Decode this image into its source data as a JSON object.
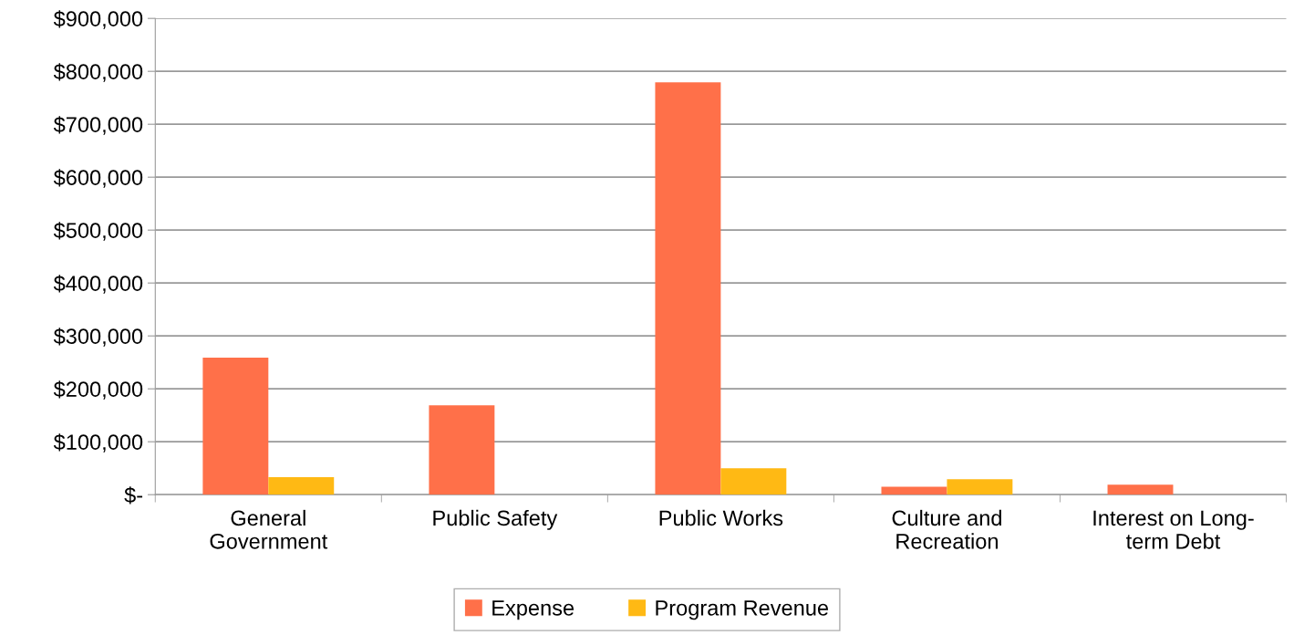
{
  "chart_data": {
    "type": "bar",
    "categories": [
      "General\nGovernment",
      "Public Safety",
      "Public Works",
      "Culture and\nRecreation",
      "Interest on Long-\nterm Debt"
    ],
    "series": [
      {
        "name": "Expense",
        "color": "#ff7049",
        "values": [
          259000,
          169000,
          779000,
          15000,
          19000
        ]
      },
      {
        "name": "Program Revenue",
        "color": "#ffb914",
        "values": [
          33000,
          0,
          50000,
          29000,
          0
        ]
      }
    ],
    "ylim": [
      0,
      900000
    ],
    "yticks": [
      {
        "value": 0,
        "label": "$-"
      },
      {
        "value": 100000,
        "label": "$100,000"
      },
      {
        "value": 200000,
        "label": "$200,000"
      },
      {
        "value": 300000,
        "label": "$300,000"
      },
      {
        "value": 400000,
        "label": "$400,000"
      },
      {
        "value": 500000,
        "label": "$500,000"
      },
      {
        "value": 600000,
        "label": "$600,000"
      },
      {
        "value": 700000,
        "label": "$700,000"
      },
      {
        "value": 800000,
        "label": "$800,000"
      },
      {
        "value": 900000,
        "label": "$900,000"
      }
    ],
    "grid": "y",
    "legend": "bottom"
  }
}
